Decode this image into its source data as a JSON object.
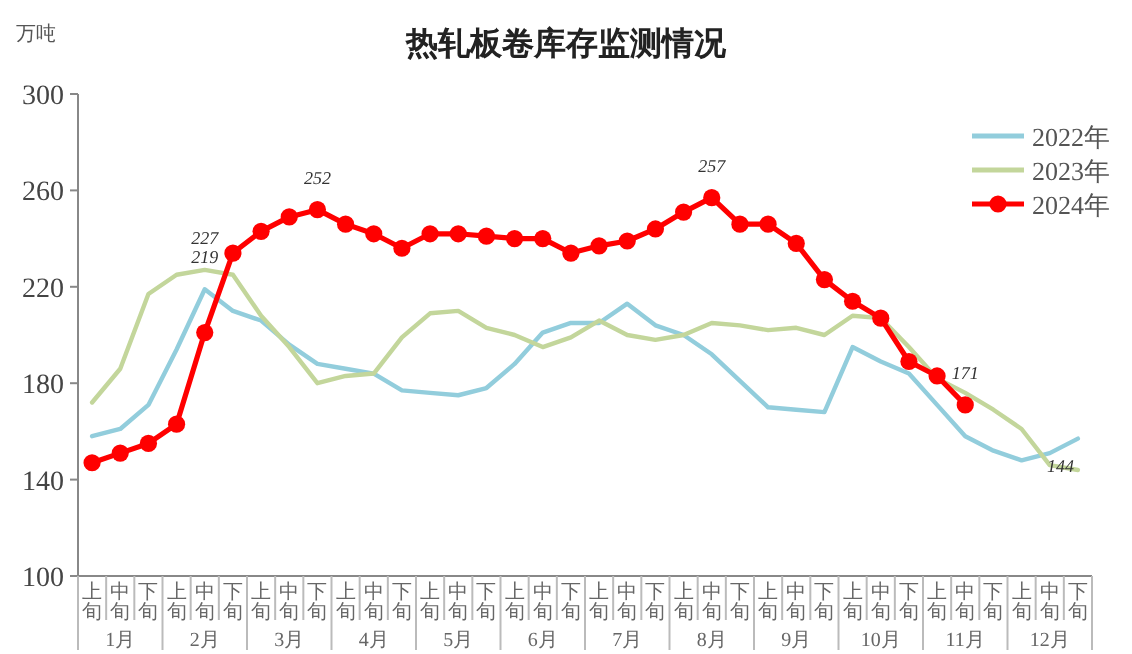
{
  "chart_data": {
    "type": "line",
    "title": "热轧板卷库存监测情况",
    "ylabel": "万吨",
    "categories": [
      "上旬",
      "中旬",
      "下旬",
      "上旬",
      "中旬",
      "下旬",
      "上旬",
      "中旬",
      "下旬",
      "上旬",
      "中旬",
      "下旬",
      "上旬",
      "中旬",
      "下旬",
      "上旬",
      "中旬",
      "下旬",
      "上旬",
      "中旬",
      "下旬",
      "上旬",
      "中旬",
      "下旬",
      "上旬",
      "中旬",
      "下旬",
      "上旬",
      "中旬",
      "下旬",
      "上旬",
      "中旬",
      "下旬",
      "上旬",
      "中旬",
      "下旬"
    ],
    "annotations": [
      "1月",
      "2月",
      "3月",
      "4月",
      "5月",
      "6月",
      "7月",
      "8月",
      "9月",
      "10月",
      "11月",
      "12月"
    ],
    "ylim": [
      100,
      300
    ],
    "yticks": [
      100,
      140,
      180,
      220,
      260,
      300
    ],
    "grid": false,
    "legend": "top right",
    "series": [
      {
        "name": "2022年",
        "color": "#92cddc",
        "marker": "none",
        "values": [
          158,
          161,
          171,
          194,
          219,
          210,
          206,
          196,
          188,
          186,
          184,
          177,
          176,
          175,
          178,
          188,
          201,
          205,
          205,
          213,
          204,
          200,
          192,
          181,
          170,
          169,
          168,
          195,
          189,
          184,
          171,
          158,
          152,
          148,
          151,
          157
        ],
        "value_labels": [
          null,
          null,
          null,
          null,
          "219",
          null,
          null,
          null,
          null,
          null,
          null,
          null,
          null,
          null,
          null,
          null,
          null,
          null,
          null,
          null,
          null,
          null,
          null,
          null,
          null,
          null,
          null,
          null,
          null,
          null,
          null,
          null,
          null,
          null,
          null,
          null
        ]
      },
      {
        "name": "2023年",
        "color": "#c3d69b",
        "marker": "none",
        "values": [
          172,
          186,
          217,
          225,
          227,
          225,
          208,
          195,
          180,
          183,
          184,
          199,
          209,
          210,
          203,
          200,
          195,
          199,
          206,
          200,
          198,
          200,
          205,
          204,
          202,
          203,
          200,
          208,
          207,
          195,
          182,
          176,
          169,
          161,
          146,
          144
        ],
        "value_labels": [
          null,
          null,
          null,
          null,
          "227",
          null,
          null,
          null,
          null,
          null,
          null,
          null,
          null,
          null,
          null,
          null,
          null,
          null,
          null,
          null,
          null,
          null,
          null,
          null,
          null,
          null,
          null,
          null,
          null,
          null,
          null,
          null,
          null,
          null,
          null,
          "144"
        ]
      },
      {
        "name": "2024年",
        "color": "#ff0000",
        "marker": "circle",
        "values": [
          147,
          151,
          155,
          163,
          201,
          234,
          243,
          249,
          252,
          246,
          242,
          236,
          242,
          242,
          241,
          240,
          240,
          234,
          237,
          239,
          244,
          251,
          257,
          246,
          246,
          238,
          223,
          214,
          207,
          189,
          183,
          171,
          null,
          null,
          null,
          null
        ],
        "value_labels": [
          null,
          null,
          null,
          null,
          null,
          null,
          null,
          null,
          "252",
          null,
          null,
          null,
          null,
          null,
          null,
          null,
          null,
          null,
          null,
          null,
          null,
          null,
          "257",
          null,
          null,
          null,
          null,
          null,
          null,
          null,
          null,
          "171",
          null,
          null,
          null,
          null
        ]
      }
    ]
  }
}
